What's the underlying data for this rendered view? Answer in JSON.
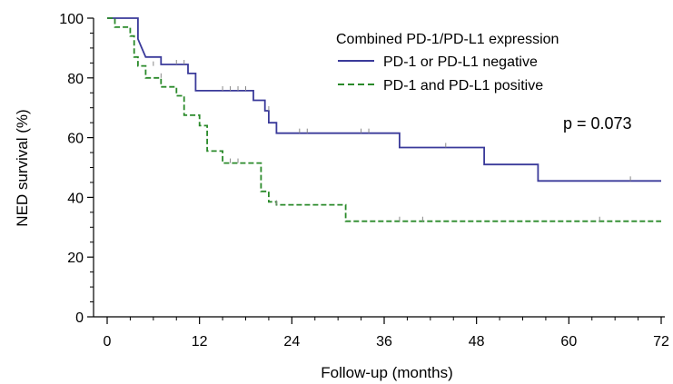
{
  "chart_data": {
    "type": "line",
    "subtype": "kaplan-meier",
    "xlabel": "Follow-up (months)",
    "ylabel": "NED survival (%)",
    "xlim": [
      0,
      72
    ],
    "ylim": [
      0,
      100
    ],
    "xticks": [
      0,
      12,
      24,
      36,
      48,
      60,
      72
    ],
    "yticks": [
      0,
      20,
      40,
      60,
      80,
      100
    ],
    "grid": false,
    "legend": {
      "title": "Combined PD-1/PD-L1 expression",
      "placement": "top-right"
    },
    "annotation": "p = 0.073",
    "series": [
      {
        "name": "PD-1 or PD-L1 negative",
        "color": "#3a3a9a",
        "dash": "solid",
        "steps": [
          [
            0,
            100
          ],
          [
            4,
            100
          ],
          [
            4,
            93
          ],
          [
            4.5,
            90
          ],
          [
            5,
            87
          ],
          [
            7,
            87
          ],
          [
            7,
            84.5
          ],
          [
            10.5,
            84.5
          ],
          [
            10.5,
            81.5
          ],
          [
            11.5,
            81.5
          ],
          [
            11.5,
            75.7
          ],
          [
            19,
            75.7
          ],
          [
            19,
            72.5
          ],
          [
            20.5,
            72.5
          ],
          [
            20.5,
            69
          ],
          [
            21,
            69
          ],
          [
            21,
            65
          ],
          [
            22,
            65
          ],
          [
            22,
            61.5
          ],
          [
            38,
            61.5
          ],
          [
            38,
            56.7
          ],
          [
            49,
            56.7
          ],
          [
            49,
            51
          ],
          [
            56,
            51
          ],
          [
            56,
            45.5
          ],
          [
            72,
            45.5
          ]
        ],
        "censors": [
          [
            9,
            84.5
          ],
          [
            10,
            84.5
          ],
          [
            15,
            75.7
          ],
          [
            16,
            75.7
          ],
          [
            17,
            75.7
          ],
          [
            18,
            75.7
          ],
          [
            21,
            69
          ],
          [
            25,
            61.5
          ],
          [
            26,
            61.5
          ],
          [
            33,
            61.5
          ],
          [
            34,
            61.5
          ],
          [
            44,
            56.7
          ],
          [
            68,
            45.5
          ]
        ]
      },
      {
        "name": "PD-1 and PD-L1 positive",
        "color": "#2a8a2a",
        "dash": "dashed",
        "steps": [
          [
            0,
            100
          ],
          [
            1,
            100
          ],
          [
            1,
            97
          ],
          [
            3,
            97
          ],
          [
            3,
            94
          ],
          [
            3.5,
            94
          ],
          [
            3.5,
            87
          ],
          [
            4,
            87
          ],
          [
            4,
            84
          ],
          [
            5,
            84
          ],
          [
            5,
            80
          ],
          [
            7,
            80
          ],
          [
            7,
            77
          ],
          [
            9,
            77
          ],
          [
            9,
            74
          ],
          [
            10,
            74
          ],
          [
            10,
            67.5
          ],
          [
            12,
            67.5
          ],
          [
            12,
            64
          ],
          [
            13,
            64
          ],
          [
            13,
            55.5
          ],
          [
            15,
            55.5
          ],
          [
            15,
            51.5
          ],
          [
            20,
            51.5
          ],
          [
            20,
            42
          ],
          [
            21,
            42
          ],
          [
            21,
            38.5
          ],
          [
            22,
            38.5
          ],
          [
            22,
            37.5
          ],
          [
            31,
            37.5
          ],
          [
            31,
            32
          ],
          [
            72,
            32
          ]
        ],
        "censors": [
          [
            6,
            84
          ],
          [
            7,
            80
          ],
          [
            16,
            51.5
          ],
          [
            17,
            51.5
          ],
          [
            22,
            37.5
          ],
          [
            38,
            32
          ],
          [
            41,
            32
          ],
          [
            64,
            32
          ]
        ]
      }
    ]
  }
}
